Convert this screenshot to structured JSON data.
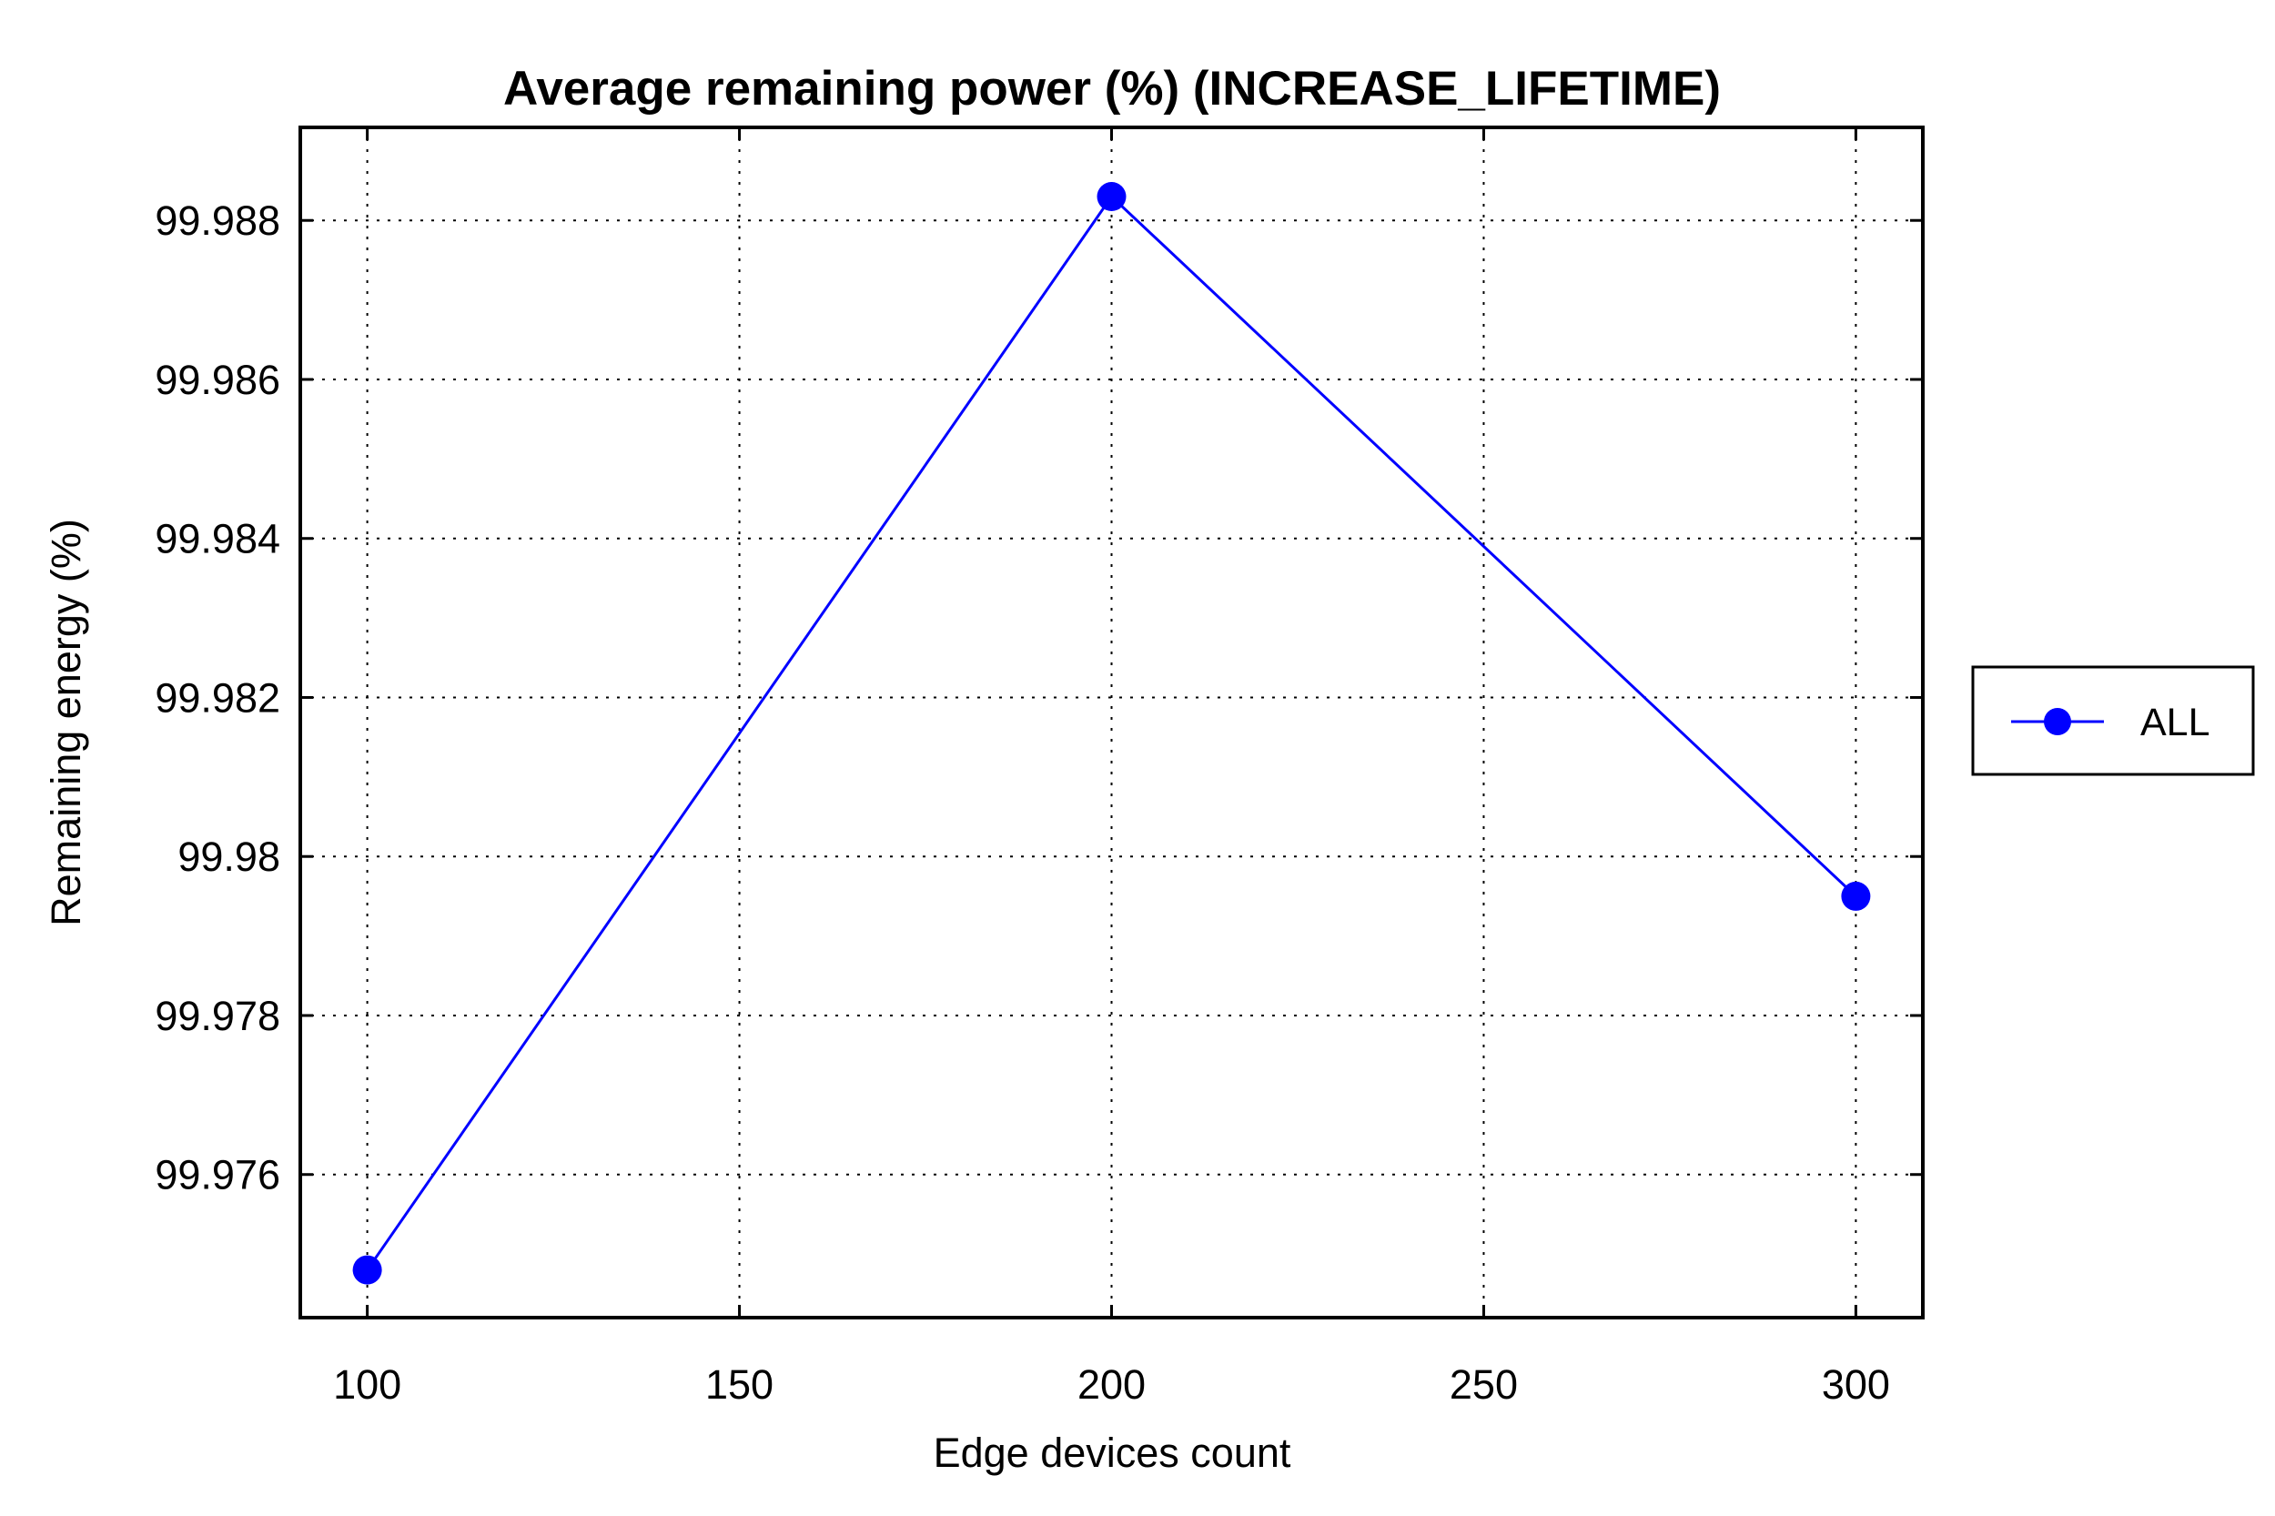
{
  "chart_data": {
    "type": "line",
    "title": "Average remaining power (%) (INCREASE_LIFETIME)",
    "xlabel": "Edge devices count",
    "ylabel": "Remaining energy (%)",
    "x": [
      100,
      200,
      300
    ],
    "series": [
      {
        "name": "ALL",
        "values": [
          99.9748,
          99.9883,
          99.9795
        ],
        "color": "#0000ff"
      }
    ],
    "xticks": [
      100,
      150,
      200,
      250,
      300
    ],
    "xtick_labels": [
      "100",
      "150",
      "200",
      "250",
      "300"
    ],
    "yticks": [
      99.976,
      99.978,
      99.98,
      99.982,
      99.984,
      99.986,
      99.988
    ],
    "ytick_labels": [
      "99.976",
      "99.978",
      "99.98",
      "99.982",
      "99.984",
      "99.986",
      "99.988"
    ],
    "xlim": [
      91,
      309
    ],
    "ylim": [
      99.9742,
      99.98917
    ],
    "grid": true,
    "legend_position": "outside-right"
  }
}
